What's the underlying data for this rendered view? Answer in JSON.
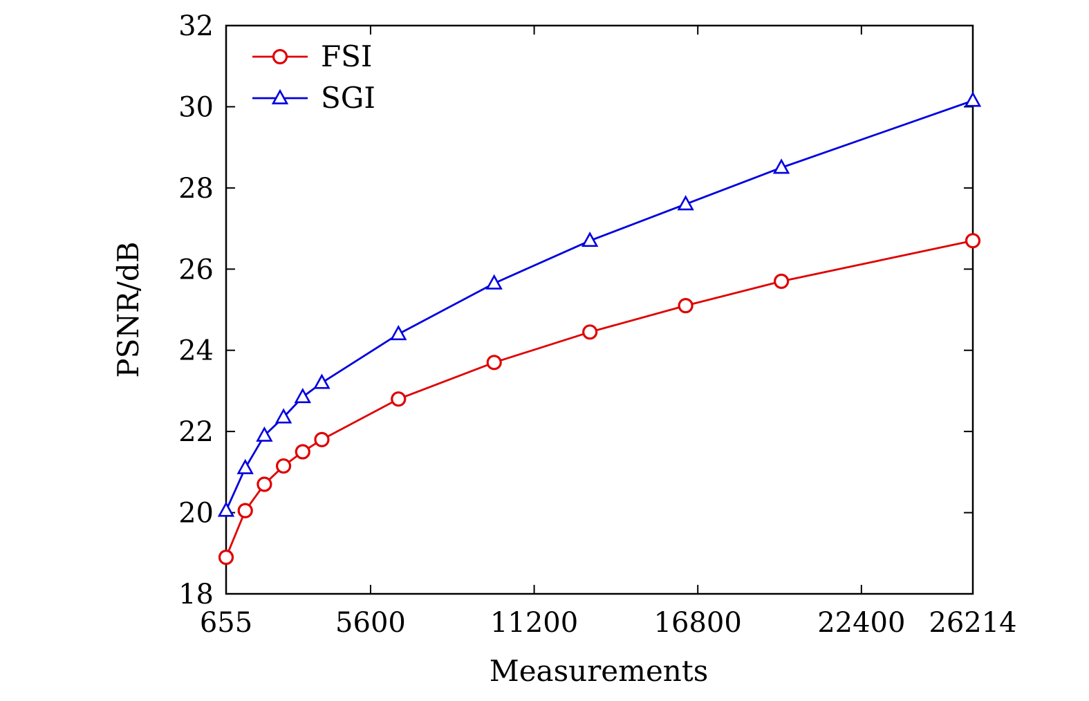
{
  "chart_data": {
    "type": "line",
    "title": "",
    "xlabel": "Measurements",
    "ylabel": "PSNR/dB",
    "xlim": [
      655,
      26214
    ],
    "ylim": [
      18,
      32
    ],
    "xticks": [
      655,
      5600,
      11200,
      16800,
      22400,
      26214
    ],
    "xtick_labels": [
      "655",
      "5600",
      "11200",
      "16800",
      "22400",
      "26214"
    ],
    "yticks": [
      18,
      20,
      22,
      24,
      26,
      28,
      30,
      32
    ],
    "ytick_labels": [
      "18",
      "20",
      "22",
      "24",
      "26",
      "28",
      "30",
      "32"
    ],
    "grid": false,
    "legend_position": "top-left",
    "series": [
      {
        "name": "FSI",
        "color": "#e00000",
        "marker": "circle",
        "x": [
          655,
          1311,
          1966,
          2621,
          3277,
          3932,
          6554,
          9830,
          13107,
          16384,
          19661,
          26214
        ],
        "y": [
          18.9,
          20.05,
          20.7,
          21.15,
          21.5,
          21.8,
          22.8,
          23.7,
          24.45,
          25.1,
          25.7,
          26.7
        ]
      },
      {
        "name": "SGI",
        "color": "#0000e0",
        "marker": "triangle",
        "x": [
          655,
          1311,
          1966,
          2621,
          3277,
          3932,
          6554,
          9830,
          13107,
          16384,
          19661,
          26214
        ],
        "y": [
          20.05,
          21.1,
          21.9,
          22.35,
          22.85,
          23.2,
          24.4,
          25.65,
          26.7,
          27.6,
          28.5,
          30.15
        ]
      }
    ]
  }
}
